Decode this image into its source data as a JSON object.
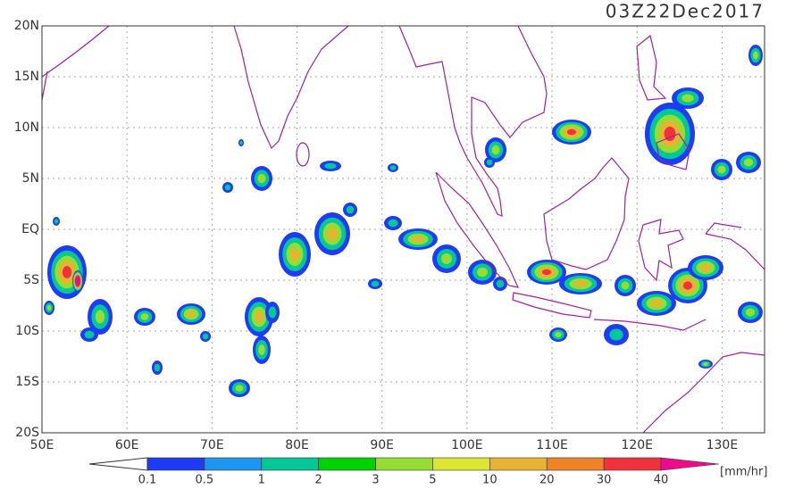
{
  "title": "03Z22Dec2017",
  "lat_labels": [
    "20N",
    "15N",
    "10N",
    "5N",
    "EQ",
    "5S",
    "10S",
    "15S",
    "20S"
  ],
  "lon_labels": [
    "50E",
    "60E",
    "70E",
    "80E",
    "90E",
    "100E",
    "110E",
    "120E",
    "130E"
  ],
  "colorbar": {
    "labels": [
      0.1,
      0.5,
      1,
      2,
      3,
      5,
      10,
      20,
      30,
      40
    ],
    "colors": [
      "#1e3cf5",
      "#1e96f0",
      "#00c896",
      "#00d200",
      "#96dc32",
      "#dce632",
      "#e6b432",
      "#f08228",
      "#f0323c",
      "#f00a8c"
    ],
    "unit": "[mm/hr]"
  }
}
